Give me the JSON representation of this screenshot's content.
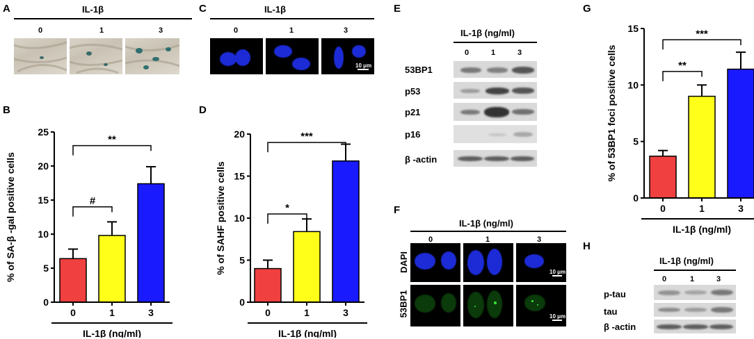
{
  "panels": {
    "A": {
      "letter": "A",
      "title": "IL-1β",
      "labels": [
        "0",
        "1",
        "3"
      ]
    },
    "C": {
      "letter": "C",
      "title": "IL-1β",
      "labels": [
        "0",
        "1",
        "3"
      ],
      "scale": "10 μm"
    },
    "E": {
      "letter": "E",
      "title": "IL-1β  (ng/ml)",
      "labels": [
        "0",
        "1",
        "3"
      ],
      "rows": [
        "53BP1",
        "p53",
        "p21",
        "p16",
        "β -actin"
      ]
    },
    "F": {
      "letter": "F",
      "title": "IL-1β  (ng/ml)",
      "labels": [
        "0",
        "1",
        "3"
      ],
      "rows": [
        "DAPI",
        "53BP1"
      ],
      "scale": "10 μm"
    },
    "H": {
      "letter": "H",
      "title": "IL-1β  (ng/ml)",
      "labels": [
        "0",
        "1",
        "3"
      ],
      "rows": [
        "p-tau",
        "tau",
        "β -actin"
      ]
    },
    "B": {
      "letter": "B"
    },
    "D": {
      "letter": "D"
    },
    "G": {
      "letter": "G"
    }
  },
  "chart_data": [
    {
      "panel": "B",
      "type": "bar",
      "categories": [
        "0",
        "1",
        "3"
      ],
      "values": [
        6.4,
        9.8,
        17.4
      ],
      "errors": [
        1.4,
        2.0,
        2.5
      ],
      "colors": [
        "#f04040",
        "#ffff1a",
        "#1a1aff"
      ],
      "ylabel": "% of SA-β -gal positive cells",
      "xlabel": "IL-1β  (ng/ml)",
      "ylim": [
        0,
        25
      ],
      "yticks": [
        "0",
        "5",
        "10",
        "15",
        "20",
        "25"
      ],
      "significance": [
        {
          "from": 0,
          "to": 1,
          "label": "#",
          "y": 14.0
        },
        {
          "from": 0,
          "to": 2,
          "label": "**",
          "y": 23.0
        }
      ]
    },
    {
      "panel": "D",
      "type": "bar",
      "categories": [
        "0",
        "1",
        "3"
      ],
      "values": [
        4.0,
        8.4,
        16.8
      ],
      "errors": [
        1.0,
        1.5,
        2.0
      ],
      "colors": [
        "#f04040",
        "#ffff1a",
        "#1a1aff"
      ],
      "ylabel": "% of SAHF positive cells",
      "xlabel": "IL-1β  (ng/ml)",
      "ylim": [
        0,
        20
      ],
      "yticks": [
        "0",
        "5",
        "10",
        "15",
        "20"
      ],
      "significance": [
        {
          "from": 0,
          "to": 1,
          "label": "*",
          "y": 10.5
        },
        {
          "from": 0,
          "to": 2,
          "label": "***",
          "y": 19.0
        }
      ]
    },
    {
      "panel": "G",
      "type": "bar",
      "categories": [
        "0",
        "1",
        "3"
      ],
      "values": [
        3.7,
        9.0,
        11.4
      ],
      "errors": [
        0.5,
        1.0,
        1.5
      ],
      "colors": [
        "#f04040",
        "#ffff1a",
        "#1a1aff"
      ],
      "ylabel": "% of 53BP1 foci positive cells",
      "xlabel": "IL-1β  (ng/ml)",
      "ylim": [
        0,
        15
      ],
      "yticks": [
        "0",
        "5",
        "10",
        "15"
      ],
      "significance": [
        {
          "from": 0,
          "to": 1,
          "label": "**",
          "y": 11.2
        },
        {
          "from": 0,
          "to": 2,
          "label": "***",
          "y": 14.0
        }
      ]
    }
  ]
}
